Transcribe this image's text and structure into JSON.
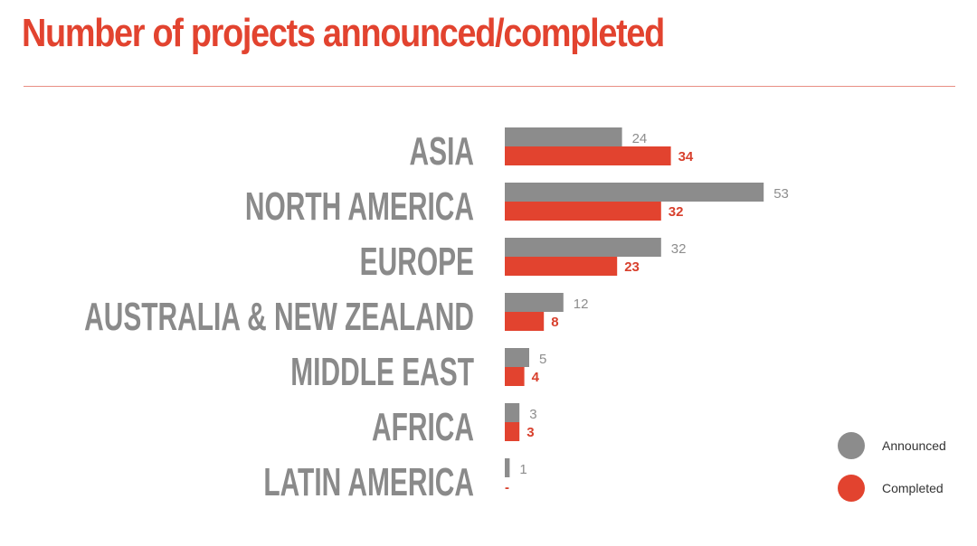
{
  "title": "Number of projects announced/completed",
  "colors": {
    "announced": "#8c8c8c",
    "completed": "#e2432f",
    "title": "#e2432f"
  },
  "legend": {
    "announced": "Announced",
    "completed": "Completed"
  },
  "chart_data": {
    "type": "bar",
    "orientation": "horizontal",
    "title": "Number of projects announced/completed",
    "categories": [
      "ASIA",
      "NORTH AMERICA",
      "EUROPE",
      "AUSTRALIA & NEW ZEALAND",
      "MIDDLE EAST",
      "AFRICA",
      "LATIN AMERICA"
    ],
    "series": [
      {
        "name": "Announced",
        "values": [
          24,
          53,
          32,
          12,
          5,
          3,
          1
        ],
        "labels": [
          "24",
          "53",
          "32",
          "12",
          "5",
          "3",
          "1"
        ]
      },
      {
        "name": "Completed",
        "values": [
          34,
          32,
          23,
          8,
          4,
          3,
          0
        ],
        "labels": [
          "34",
          "32",
          "23",
          "8",
          "4",
          "3",
          "-"
        ]
      }
    ],
    "xlim": [
      0,
      53
    ],
    "grid": false,
    "legend_position": "bottom-right"
  }
}
